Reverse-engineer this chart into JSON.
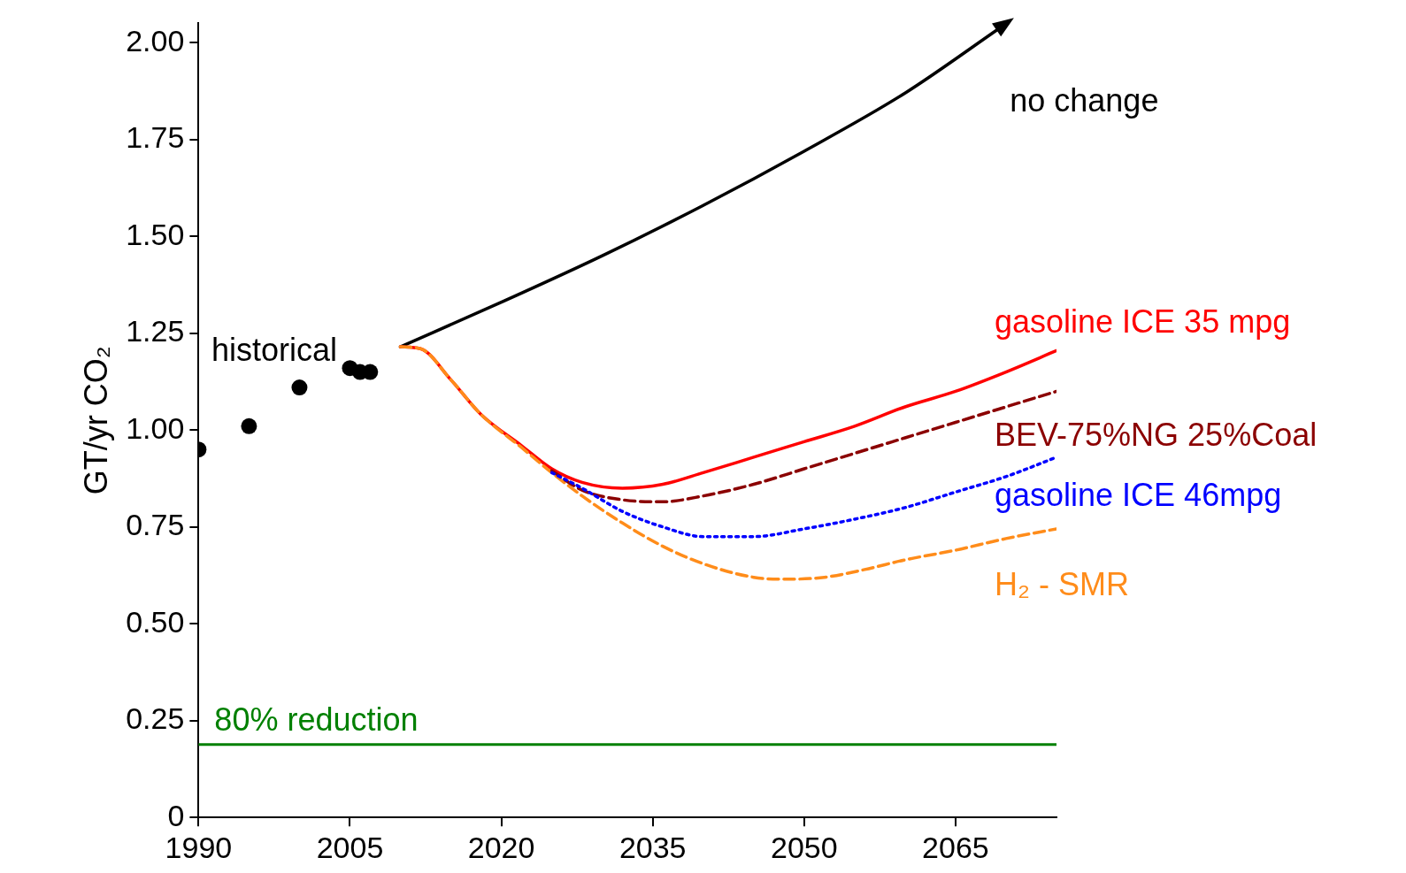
{
  "chart_data": {
    "type": "line",
    "ylabel": "GT/yr CO₂",
    "xlim": [
      1990,
      2075
    ],
    "xticks": [
      1990,
      2005,
      2020,
      2035,
      2050,
      2065
    ],
    "ylim": [
      0,
      2.05
    ],
    "yticks": [
      0,
      {
        "value": 0.25,
        "label": "0.25"
      },
      {
        "value": 0.5,
        "label": "0.50"
      },
      {
        "value": 0.75,
        "label": "0.75"
      },
      {
        "value": 1,
        "label": "1.00"
      },
      {
        "value": 1.25,
        "label": "1.25"
      },
      {
        "value": 1.5,
        "label": "1.50"
      },
      {
        "value": 1.75,
        "label": "1.75"
      },
      {
        "value": 2,
        "label": "2.00"
      }
    ],
    "grid": false,
    "legend": false,
    "series": [
      {
        "name": "historical",
        "type": "scatter",
        "marker": "circle",
        "color": "#000000",
        "x": [
          1990,
          1995,
          2000,
          2005,
          2006,
          2007
        ],
        "values": [
          0.95,
          1.01,
          1.11,
          1.16,
          1.15,
          1.15
        ]
      },
      {
        "name": "no change",
        "color": "#000000",
        "line_style": "solid",
        "marker": "none",
        "x": [
          2010,
          2020,
          2030,
          2040,
          2050,
          2060,
          2069.5
        ],
        "values": [
          1.215,
          1.33,
          1.45,
          1.58,
          1.72,
          1.87,
          2.04
        ]
      },
      {
        "name": "gasoline ICE 35 mpg",
        "color": "#ff0000",
        "line_style": "solid",
        "marker": "none",
        "x": [
          2010,
          2012,
          2015,
          2018,
          2022,
          2025,
          2028,
          2032,
          2036,
          2040,
          2045,
          2050,
          2055,
          2060,
          2065,
          2070,
          2075
        ],
        "values": [
          1.215,
          1.21,
          1.13,
          1.04,
          0.96,
          0.9,
          0.865,
          0.85,
          0.86,
          0.89,
          0.93,
          0.97,
          1.01,
          1.06,
          1.1,
          1.15,
          1.205
        ]
      },
      {
        "name": "BEV-75%NG 25%Coal",
        "color": "#8b0000",
        "line_style": "dashed",
        "marker": "none",
        "x": [
          2025,
          2028,
          2032,
          2036,
          2040,
          2045,
          2050,
          2055,
          2060,
          2065,
          2070,
          2075
        ],
        "values": [
          0.895,
          0.845,
          0.82,
          0.815,
          0.83,
          0.86,
          0.9,
          0.94,
          0.98,
          1.02,
          1.06,
          1.1
        ]
      },
      {
        "name": "gasoline ICE 46mpg",
        "color": "#0000ff",
        "line_style": "dotted",
        "marker": "none",
        "x": [
          2025,
          2028,
          2032,
          2036,
          2040,
          2045,
          2050,
          2055,
          2060,
          2065,
          2070,
          2075
        ],
        "values": [
          0.89,
          0.85,
          0.79,
          0.75,
          0.725,
          0.725,
          0.745,
          0.77,
          0.8,
          0.84,
          0.88,
          0.93
        ]
      },
      {
        "name": "H₂ - SMR",
        "color": "#ff8c1a",
        "line_style": "dashed",
        "marker": "none",
        "x": [
          2010,
          2012,
          2015,
          2018,
          2022,
          2025,
          2028,
          2032,
          2036,
          2040,
          2045,
          2048,
          2052,
          2056,
          2060,
          2065,
          2070,
          2075
        ],
        "values": [
          1.215,
          1.21,
          1.13,
          1.04,
          0.955,
          0.89,
          0.83,
          0.76,
          0.7,
          0.655,
          0.62,
          0.615,
          0.62,
          0.64,
          0.665,
          0.69,
          0.72,
          0.745
        ]
      }
    ],
    "ref_lines": [
      {
        "axis": "y",
        "value": 0.188,
        "label": "80% reduction",
        "color": "#008000",
        "line_style": "solid"
      }
    ]
  }
}
